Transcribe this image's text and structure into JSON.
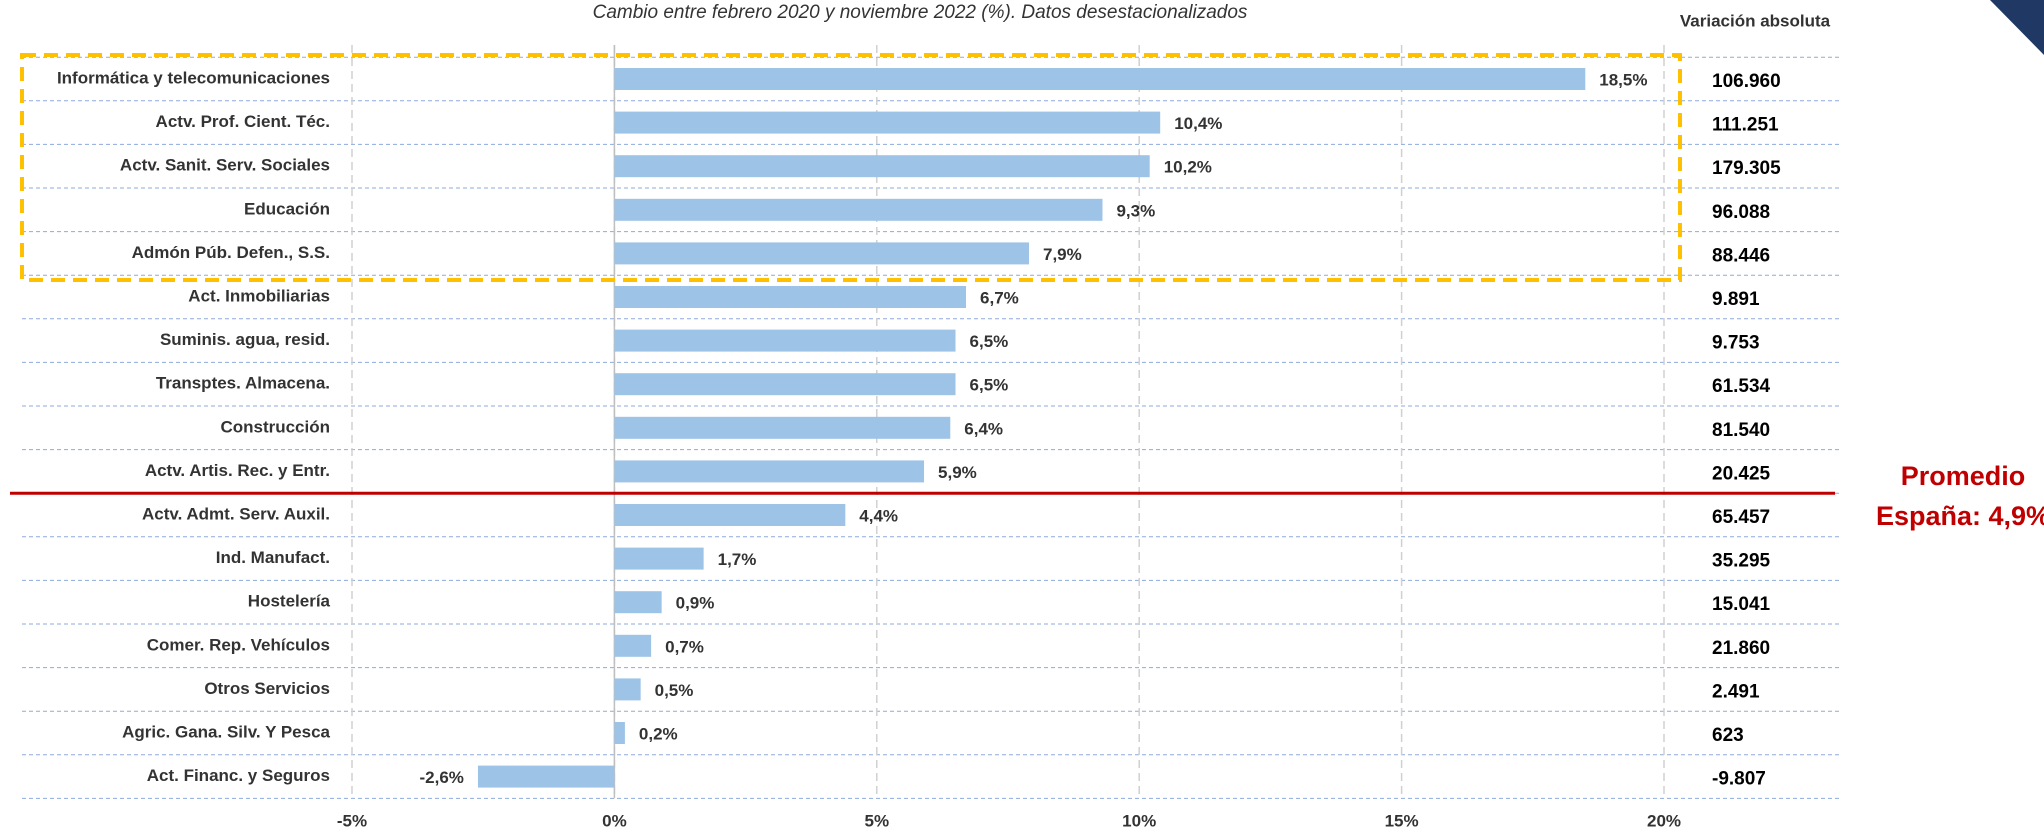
{
  "chart_data": {
    "type": "bar",
    "orientation": "horizontal",
    "title": "Cambio entre febrero 2020 y noviembre 2022 (%). Datos desestacionalizados",
    "categories": [
      "Informática y telecomunicaciones",
      "Actv. Prof. Cient. Téc.",
      "Actv. Sanit. Serv. Sociales",
      "Educación",
      "Admón Púb. Defen., S.S.",
      "Act. Inmobiliarias",
      "Suminis. agua, resid.",
      "Transptes. Almacena.",
      "Construcción",
      "Actv. Artis. Rec. y Entr.",
      "Actv. Admt. Serv. Auxil.",
      "Ind. Manufact.",
      "Hostelería",
      "Comer. Rep. Vehículos",
      "Otros Servicios",
      "Agric. Gana. Silv. Y Pesca",
      "Act. Financ. y Seguros"
    ],
    "values": [
      18.5,
      10.4,
      10.2,
      9.3,
      7.9,
      6.7,
      6.5,
      6.5,
      6.4,
      5.9,
      4.4,
      1.7,
      0.9,
      0.7,
      0.5,
      0.2,
      -2.6
    ],
    "value_labels": [
      "18,5%",
      "10,4%",
      "10,2%",
      "9,3%",
      "7,9%",
      "6,7%",
      "6,5%",
      "6,5%",
      "6,4%",
      "5,9%",
      "4,4%",
      "1,7%",
      "0,9%",
      "0,7%",
      "0,5%",
      "0,2%",
      "-2,6%"
    ],
    "color": "#9dc3e6",
    "absolute": {
      "name": "Variación absoluta",
      "values": [
        106960,
        111251,
        179305,
        96088,
        88446,
        9891,
        9753,
        61534,
        81540,
        20425,
        65457,
        35295,
        15041,
        21860,
        2491,
        623,
        -9807
      ],
      "value_labels": [
        "106.960",
        "111.251",
        "179.305",
        "96.088",
        "88.446",
        "9.891",
        "9.753",
        "61.534",
        "81.540",
        "20.425",
        "65.457",
        "35.295",
        "15.041",
        "21.860",
        "2.491",
        "623",
        "-9.807"
      ]
    },
    "xlim": [
      -5,
      20
    ],
    "xticks": [
      {
        "value": -5,
        "label": "-5%"
      },
      {
        "value": 0,
        "label": "0%"
      },
      {
        "value": 5,
        "label": "5%"
      },
      {
        "value": 10,
        "label": "10%"
      },
      {
        "value": 15,
        "label": "15%"
      },
      {
        "value": 20,
        "label": "20%"
      }
    ],
    "grid": true,
    "annotation": [
      "Promedio",
      "España: 4,9%"
    ]
  }
}
